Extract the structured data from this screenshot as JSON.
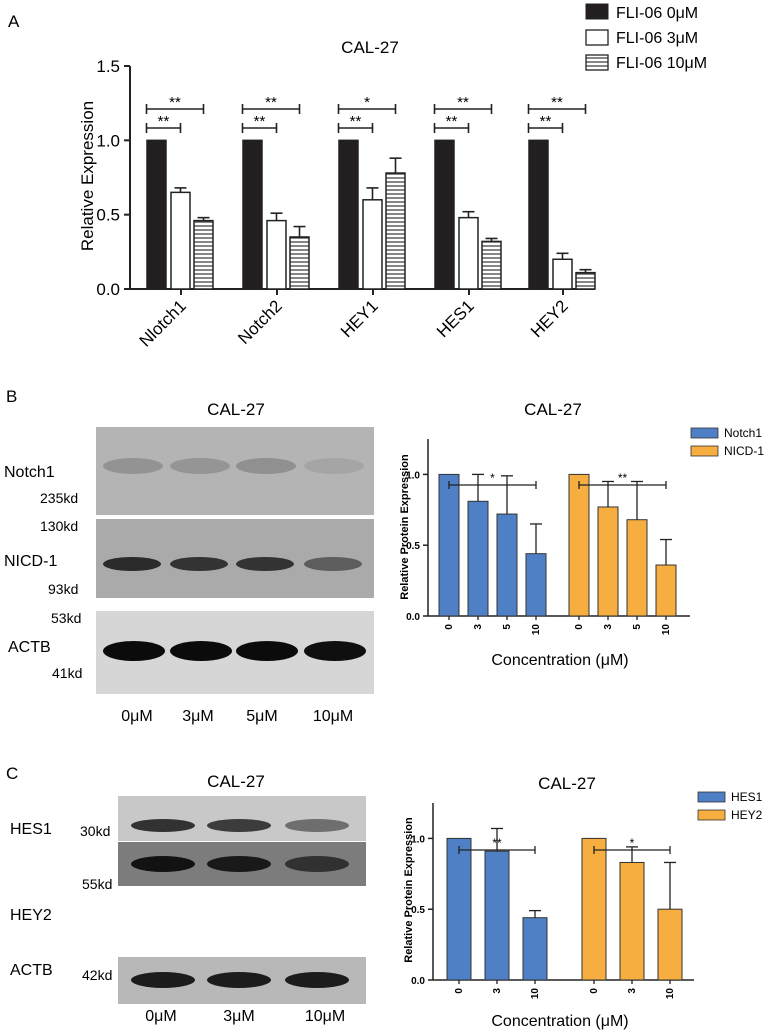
{
  "panels": {
    "A": {
      "letter": "A",
      "title": "CAL-27",
      "ylabel": "Relative Expression",
      "yticks": [
        "0.0",
        "0.5",
        "1.0",
        "1.5"
      ],
      "legend": [
        {
          "label": "FLI-06 0μM"
        },
        {
          "label": "FLI-06 3μM"
        },
        {
          "label": "FLI-06 10μM"
        }
      ]
    },
    "B": {
      "letter": "B",
      "blot": {
        "title": "CAL-27",
        "row_labels": [
          "Notch1",
          "NICD-1",
          "ACTB"
        ],
        "markers": [
          "235kd",
          "130kd",
          "93kd",
          "53kd",
          "41kd"
        ],
        "lanes": [
          "0μM",
          "3μM",
          "5μM",
          "10μM"
        ]
      },
      "chart": {
        "title": "CAL-27",
        "ylabel": "Relative Protein Expression",
        "xlabel": "Concentration (μM)",
        "yticks": [
          "0.0",
          "0.5",
          "1.0"
        ],
        "legend": [
          {
            "label": "Notch1"
          },
          {
            "label": "NICD-1"
          }
        ]
      }
    },
    "C": {
      "letter": "C",
      "blot": {
        "title": "CAL-27",
        "row_labels": [
          "HES1",
          "HEY2",
          "ACTB"
        ],
        "markers": [
          "30kd",
          "55kd",
          "42kd"
        ],
        "lanes": [
          "0μM",
          "3μM",
          "10μM"
        ]
      },
      "chart": {
        "title": "CAL-27",
        "ylabel": "Relative Protein Expression",
        "xlabel": "Concentration (μM)",
        "yticks": [
          "0.0",
          "0.5",
          "1.0"
        ],
        "legend": [
          {
            "label": "HES1"
          },
          {
            "label": "HEY2"
          }
        ]
      }
    }
  },
  "colors": {
    "black_bar": "#231f20",
    "blue": "#4f7fc4",
    "orange": "#f5ae3f"
  },
  "chart_data": [
    {
      "panel": "A",
      "type": "bar",
      "title": "CAL-27",
      "ylabel": "Relative Expression",
      "ylim": [
        0,
        1.5
      ],
      "categories": [
        "Nlotch1",
        "Notch2",
        "HEY1",
        "HES1",
        "HEY2"
      ],
      "series": [
        {
          "name": "FLI-06 0μM",
          "values": [
            1.0,
            1.0,
            1.0,
            1.0,
            1.0
          ],
          "errors": [
            0,
            0,
            0,
            0,
            0
          ]
        },
        {
          "name": "FLI-06 3μM",
          "values": [
            0.65,
            0.46,
            0.6,
            0.48,
            0.2
          ],
          "errors": [
            0.03,
            0.05,
            0.08,
            0.04,
            0.04
          ]
        },
        {
          "name": "FLI-06 10μM",
          "values": [
            0.46,
            0.35,
            0.78,
            0.32,
            0.11
          ],
          "errors": [
            0.02,
            0.07,
            0.1,
            0.02,
            0.02
          ]
        }
      ],
      "significance": [
        {
          "category": "Nlotch1",
          "from": 0,
          "to": 1,
          "label": "**"
        },
        {
          "category": "Nlotch1",
          "from": 0,
          "to": 2,
          "label": "**"
        },
        {
          "category": "Notch2",
          "from": 0,
          "to": 1,
          "label": "**"
        },
        {
          "category": "Notch2",
          "from": 0,
          "to": 2,
          "label": "**"
        },
        {
          "category": "HEY1",
          "from": 0,
          "to": 1,
          "label": "**"
        },
        {
          "category": "HEY1",
          "from": 0,
          "to": 2,
          "label": "*"
        },
        {
          "category": "HES1",
          "from": 0,
          "to": 1,
          "label": "**"
        },
        {
          "category": "HES1",
          "from": 0,
          "to": 2,
          "label": "**"
        },
        {
          "category": "HEY2",
          "from": 0,
          "to": 1,
          "label": "**"
        },
        {
          "category": "HEY2",
          "from": 0,
          "to": 2,
          "label": "**"
        }
      ]
    },
    {
      "panel": "B",
      "type": "bar",
      "title": "CAL-27",
      "ylabel": "Relative Protein Expression",
      "xlabel": "Concentration (μM)",
      "ylim": [
        0,
        1.25
      ],
      "groups": [
        {
          "name": "Notch1",
          "categories": [
            "0",
            "3",
            "5",
            "10"
          ],
          "values": [
            1.0,
            0.81,
            0.72,
            0.44
          ],
          "errors": [
            0,
            0.19,
            0.27,
            0.21
          ],
          "significance": "*"
        },
        {
          "name": "NICD-1",
          "categories": [
            "0",
            "3",
            "5",
            "10"
          ],
          "values": [
            1.0,
            0.77,
            0.68,
            0.36
          ],
          "errors": [
            0,
            0.18,
            0.27,
            0.18
          ],
          "significance": "**"
        }
      ]
    },
    {
      "panel": "C",
      "type": "bar",
      "title": "CAL-27",
      "ylabel": "Relative Protein Expression",
      "xlabel": "Concentration (μM)",
      "ylim": [
        0,
        1.25
      ],
      "groups": [
        {
          "name": "HES1",
          "categories": [
            "0",
            "3",
            "10"
          ],
          "values": [
            1.0,
            0.91,
            0.44
          ],
          "errors": [
            0,
            0.16,
            0.05
          ],
          "significance": "**"
        },
        {
          "name": "HEY2",
          "categories": [
            "0",
            "3",
            "10"
          ],
          "values": [
            1.0,
            0.83,
            0.5
          ],
          "errors": [
            0,
            0.11,
            0.33
          ],
          "significance": "*"
        }
      ]
    }
  ]
}
